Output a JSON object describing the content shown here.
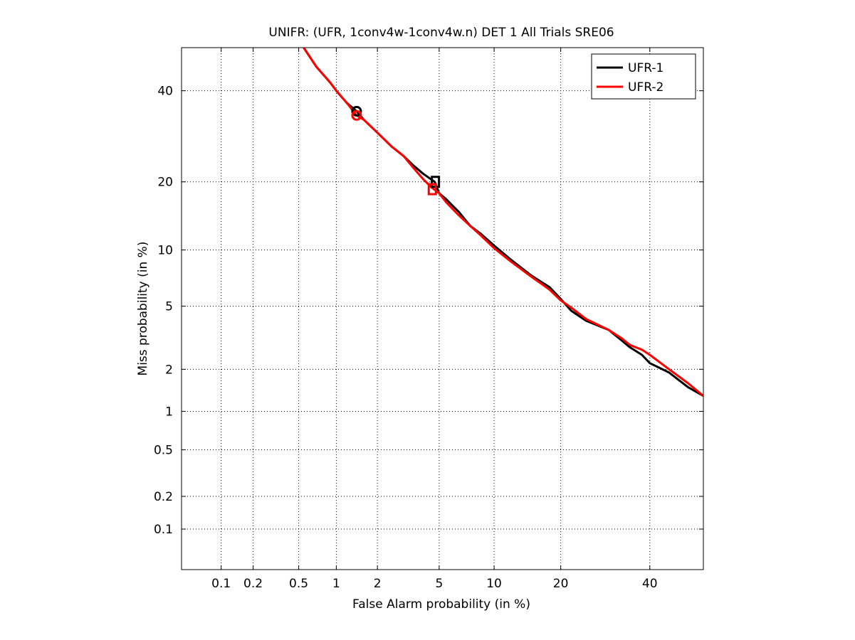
{
  "chart_data": {
    "type": "line",
    "title": "UNIFR: (UFR, 1conv4w-1conv4w.n) DET 1 All Trials SRE06",
    "xlabel": "False Alarm probability (in %)",
    "ylabel": "Miss probability (in %)",
    "x_scale": "probit",
    "y_scale": "probit",
    "xlim": [
      0.04,
      54
    ],
    "ylim": [
      0.04,
      51
    ],
    "grid": true,
    "legend_position": "top-right",
    "x_ticks": [
      0.1,
      0.2,
      0.5,
      1,
      2,
      5,
      10,
      20,
      40
    ],
    "x_tick_labels": [
      "0.1",
      "0.2",
      "0.5",
      "1",
      "2",
      "5",
      "10",
      "20",
      "40"
    ],
    "y_ticks": [
      0.1,
      0.2,
      0.5,
      1,
      2,
      5,
      10,
      20,
      40
    ],
    "y_tick_labels": [
      "0.1",
      "0.2",
      "0.5",
      "1",
      "2",
      "5",
      "10",
      "20",
      "40"
    ],
    "series": [
      {
        "name": "UFR-1",
        "color": "#000000",
        "x": [
          0.55,
          0.7,
          0.9,
          1.0,
          1.2,
          1.42,
          1.6,
          2.0,
          2.5,
          3.0,
          3.5,
          4.0,
          4.7,
          5.0,
          5.5,
          6.5,
          7.5,
          8.5,
          10,
          12,
          15,
          18,
          20,
          22,
          25,
          30,
          33,
          35,
          38,
          40,
          45,
          50,
          54
        ],
        "y": [
          51,
          46,
          42,
          40,
          37,
          35,
          33,
          30,
          27,
          25,
          23,
          21.5,
          20,
          18,
          17,
          15,
          13,
          12,
          10.5,
          9,
          7.4,
          6.4,
          5.5,
          4.7,
          4.1,
          3.6,
          3.1,
          2.8,
          2.5,
          2.2,
          1.9,
          1.5,
          1.3
        ]
      },
      {
        "name": "UFR-2",
        "color": "#ff0000",
        "x": [
          0.55,
          0.7,
          0.9,
          1.0,
          1.2,
          1.42,
          1.6,
          2.0,
          2.5,
          3.0,
          3.5,
          4.0,
          4.5,
          5.0,
          5.5,
          6.5,
          7.5,
          8.5,
          10,
          12,
          15,
          18,
          20,
          22,
          25,
          30,
          33,
          35,
          38,
          40,
          45,
          50,
          54
        ],
        "y": [
          51,
          46,
          42,
          40,
          37,
          34,
          33,
          30,
          27,
          25,
          22.5,
          20.5,
          19,
          18,
          16.5,
          14.5,
          13,
          11.8,
          10.2,
          8.8,
          7.3,
          6.2,
          5.4,
          4.9,
          4.2,
          3.6,
          3.2,
          2.9,
          2.7,
          2.5,
          2.0,
          1.6,
          1.3
        ]
      }
    ],
    "markers": [
      {
        "series": "UFR-1",
        "shape": "circle",
        "x": 1.42,
        "y": 35
      },
      {
        "series": "UFR-2",
        "shape": "circle",
        "x": 1.42,
        "y": 34
      },
      {
        "series": "UFR-1",
        "shape": "square",
        "x": 4.75,
        "y": 20
      },
      {
        "series": "UFR-2",
        "shape": "square",
        "x": 4.55,
        "y": 18.7
      }
    ]
  }
}
